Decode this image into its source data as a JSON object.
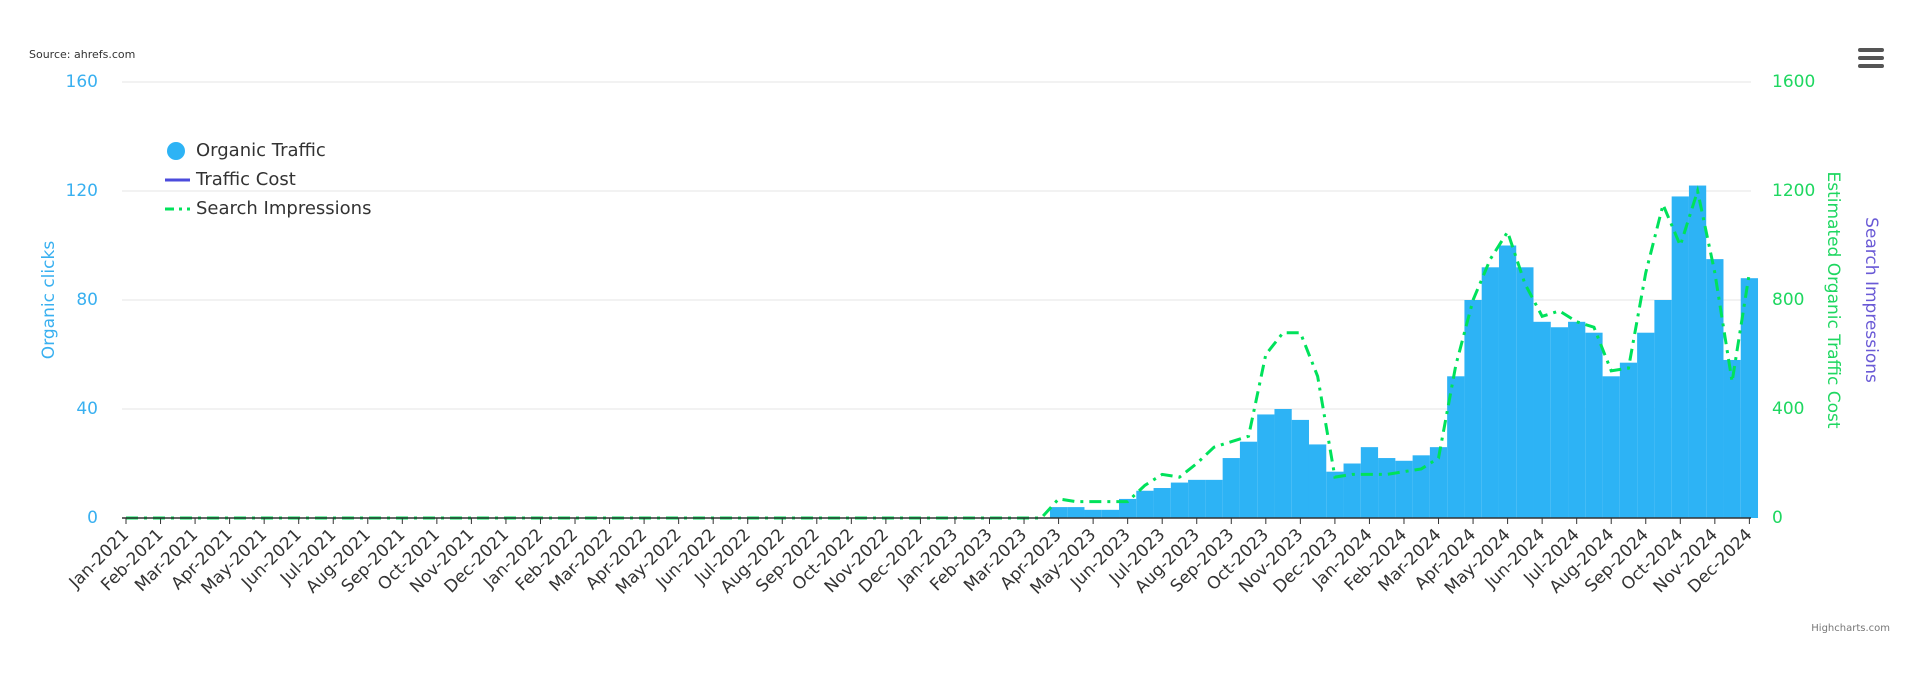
{
  "chart_data": {
    "type": "bar",
    "source": "Source: ahrefs.com",
    "credit": "Highcharts.com",
    "y_label": "Organic clicks",
    "y2_label": "Estimated Organic Traffic Cost",
    "y3_label": "Search Impressions",
    "categories": [
      "Jan-2021",
      null,
      "Feb-2021",
      null,
      "Mar-2021",
      null,
      "Apr-2021",
      null,
      "May-2021",
      null,
      "Jun-2021",
      null,
      "Jul-2021",
      null,
      "Aug-2021",
      null,
      "Sep-2021",
      null,
      "Oct-2021",
      null,
      "Nov-2021",
      null,
      "Dec-2021",
      null,
      "Jan-2022",
      null,
      "Feb-2022",
      null,
      "Mar-2022",
      null,
      "Apr-2022",
      null,
      "May-2022",
      null,
      "Jun-2022",
      null,
      "Jul-2022",
      null,
      "Aug-2022",
      null,
      "Sep-2022",
      null,
      "Oct-2022",
      null,
      "Nov-2022",
      null,
      "Dec-2022",
      null,
      "Jan-2023",
      null,
      "Feb-2023",
      null,
      "Mar-2023",
      null,
      "Apr-2023",
      null,
      "May-2023",
      null,
      "Jun-2023",
      null,
      "Jul-2023",
      null,
      "Aug-2023",
      null,
      "Sep-2023",
      null,
      "Oct-2023",
      null,
      "Nov-2023",
      null,
      "Dec-2023",
      null,
      "Jan-2024",
      null,
      "Feb-2024",
      null,
      "Mar-2024",
      null,
      "Apr-2024",
      null,
      "May-2024",
      null,
      "Jun-2024",
      null,
      "Jul-2024",
      null,
      "Aug-2024",
      null,
      "Sep-2024",
      null,
      "Oct-2024",
      null,
      "Nov-2024",
      null,
      "Dec-2024"
    ],
    "series": [
      {
        "name": "Organic Traffic",
        "color": "#2db3f5",
        "type": "bar",
        "values": [
          0,
          0,
          0,
          0,
          0,
          0,
          0,
          0,
          0,
          0,
          0,
          0,
          0,
          0,
          0,
          0,
          0,
          0,
          0,
          0,
          0,
          0,
          0,
          0,
          0,
          0,
          0,
          0,
          0,
          0,
          0,
          0,
          0,
          0,
          0,
          0,
          0,
          0,
          0,
          0,
          0,
          0,
          0,
          0,
          0,
          0,
          0,
          0,
          0,
          0,
          0,
          0,
          0,
          0,
          4,
          4,
          3,
          3,
          7,
          10,
          11,
          13,
          14,
          14,
          22,
          28,
          38,
          40,
          36,
          27,
          17,
          20,
          26,
          22,
          21,
          23,
          26,
          52,
          80,
          92,
          100,
          92,
          72,
          70,
          72,
          68,
          52,
          57,
          68,
          80,
          118,
          122,
          95,
          58,
          88
        ]
      },
      {
        "name": "Search Impressions",
        "color": "#00e25b",
        "type": "line",
        "axis": "y2",
        "values": [
          0,
          0,
          0,
          0,
          0,
          0,
          0,
          0,
          0,
          0,
          0,
          0,
          0,
          0,
          0,
          0,
          0,
          0,
          0,
          0,
          0,
          0,
          0,
          0,
          0,
          0,
          0,
          0,
          0,
          0,
          0,
          0,
          0,
          0,
          0,
          0,
          0,
          0,
          0,
          0,
          0,
          0,
          0,
          0,
          0,
          0,
          0,
          0,
          0,
          0,
          0,
          0,
          0,
          0,
          70,
          60,
          60,
          60,
          60,
          120,
          160,
          150,
          200,
          260,
          280,
          300,
          600,
          680,
          680,
          520,
          150,
          160,
          160,
          160,
          170,
          180,
          220,
          560,
          800,
          950,
          1050,
          860,
          740,
          760,
          720,
          700,
          540,
          550,
          900,
          1150,
          1000,
          1200,
          900,
          500,
          900
        ]
      }
    ],
    "legend": [
      {
        "name": "Organic Traffic",
        "color": "#2db3f5"
      },
      {
        "name": "Traffic Cost",
        "color": "#4b4bdc"
      },
      {
        "name": "Search Impressions",
        "color": "#00e25b"
      }
    ],
    "ylim": [
      0,
      160
    ],
    "yticks": [
      0,
      40,
      80,
      120,
      160
    ],
    "y_color": "#39b0f0",
    "y2lim": [
      0,
      1600
    ],
    "y2ticks": [
      0,
      400,
      800,
      1200,
      1600
    ],
    "y2_color": "#1ed760",
    "y3_color": "#6a5ad6",
    "grid": true
  }
}
